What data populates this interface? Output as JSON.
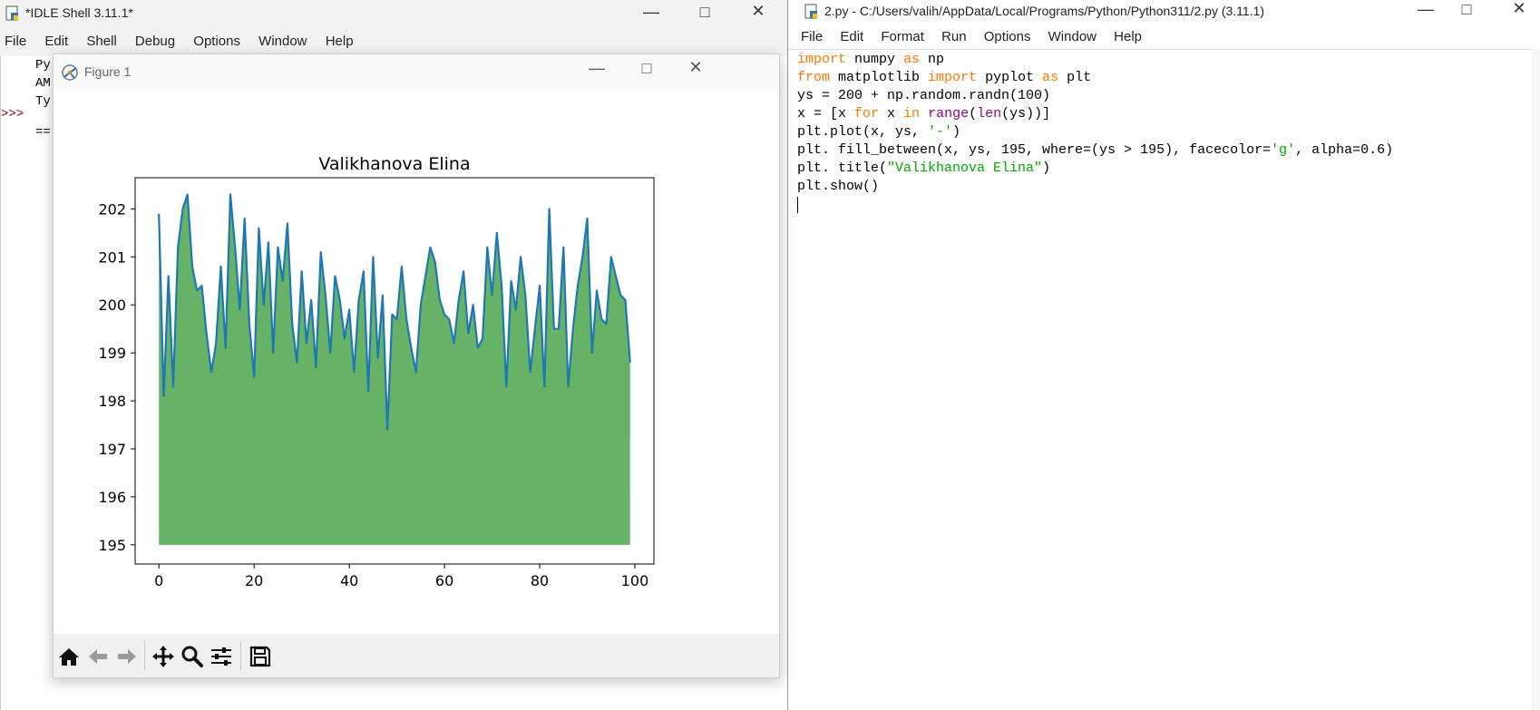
{
  "shell": {
    "title": "*IDLE Shell 3.11.1*",
    "menu": [
      "File",
      "Edit",
      "Shell",
      "Debug",
      "Options",
      "Window",
      "Help"
    ],
    "lines": [
      "Py",
      "AM",
      "Ty"
    ],
    "prompt": ">>>",
    "restart_marker": "=="
  },
  "editor": {
    "title": "2.py - C:/Users/valih/AppData/Local/Programs/Python/Python311/2.py (3.11.1)",
    "menu": [
      "File",
      "Edit",
      "Format",
      "Run",
      "Options",
      "Window",
      "Help"
    ],
    "code": [
      [
        {
          "t": "import",
          "c": "kw"
        },
        {
          "t": " numpy "
        },
        {
          "t": "as",
          "c": "kw"
        },
        {
          "t": " np"
        }
      ],
      [
        {
          "t": "from",
          "c": "kw"
        },
        {
          "t": " matplotlib "
        },
        {
          "t": "import",
          "c": "kw"
        },
        {
          "t": " pyplot "
        },
        {
          "t": "as",
          "c": "kw"
        },
        {
          "t": " plt"
        }
      ],
      [
        {
          "t": "ys = 200 + np.random.randn(100)"
        }
      ],
      [
        {
          "t": "x = [x "
        },
        {
          "t": "for",
          "c": "kw"
        },
        {
          "t": " x "
        },
        {
          "t": "in",
          "c": "kw"
        },
        {
          "t": " "
        },
        {
          "t": "range",
          "c": "bi"
        },
        {
          "t": "("
        },
        {
          "t": "len",
          "c": "bi"
        },
        {
          "t": "(ys))]"
        }
      ],
      [
        {
          "t": "plt.plot(x, ys, "
        },
        {
          "t": "'-'",
          "c": "str"
        },
        {
          "t": ")"
        }
      ],
      [
        {
          "t": "plt. fill_between(x, ys, 195, where=(ys > 195), facecolor="
        },
        {
          "t": "'g'",
          "c": "str"
        },
        {
          "t": ", alpha=0.6)"
        }
      ],
      [
        {
          "t": "plt. title("
        },
        {
          "t": "\"Valikhanova Elina\"",
          "c": "str"
        },
        {
          "t": ")"
        }
      ],
      [
        {
          "t": "plt.show()"
        }
      ]
    ],
    "colors": {
      "keyword": "#ff7700",
      "builtin": "#900090",
      "string": "#00aa00"
    }
  },
  "figure": {
    "title": "Figure 1",
    "toolbar": [
      "home-icon",
      "back-arrow-icon",
      "forward-arrow-icon",
      "pan-icon",
      "zoom-icon",
      "configure-subplots-icon",
      "save-icon"
    ]
  },
  "chart_data": {
    "type": "line",
    "title": "Valikhanova Elina",
    "xlabel": "",
    "ylabel": "",
    "xlim": [
      -5,
      104
    ],
    "ylim": [
      194.6,
      202.65
    ],
    "xticks": [
      0,
      20,
      40,
      60,
      80,
      100
    ],
    "yticks": [
      195,
      196,
      197,
      198,
      199,
      200,
      201,
      202
    ],
    "fill_baseline": 195,
    "fill_color": "#66b266",
    "line_color": "#1f77b4",
    "grid": false,
    "x": [
      0,
      1,
      2,
      3,
      4,
      5,
      6,
      7,
      8,
      9,
      10,
      11,
      12,
      13,
      14,
      15,
      16,
      17,
      18,
      19,
      20,
      21,
      22,
      23,
      24,
      25,
      26,
      27,
      28,
      29,
      30,
      31,
      32,
      33,
      34,
      35,
      36,
      37,
      38,
      39,
      40,
      41,
      42,
      43,
      44,
      45,
      46,
      47,
      48,
      49,
      50,
      51,
      52,
      53,
      54,
      55,
      56,
      57,
      58,
      59,
      60,
      61,
      62,
      63,
      64,
      65,
      66,
      67,
      68,
      69,
      70,
      71,
      72,
      73,
      74,
      75,
      76,
      77,
      78,
      79,
      80,
      81,
      82,
      83,
      84,
      85,
      86,
      87,
      88,
      89,
      90,
      91,
      92,
      93,
      94,
      95,
      96,
      97,
      98,
      99
    ],
    "y": [
      201.9,
      198.1,
      200.6,
      198.3,
      201.2,
      202.0,
      202.3,
      200.8,
      200.3,
      200.4,
      199.4,
      198.6,
      199.2,
      200.8,
      199.1,
      202.3,
      201.2,
      199.9,
      201.8,
      199.6,
      198.5,
      201.6,
      200.0,
      201.3,
      199.0,
      201.2,
      200.5,
      201.7,
      199.6,
      198.8,
      200.7,
      199.2,
      200.1,
      198.7,
      201.1,
      200.2,
      199.0,
      200.6,
      200.1,
      199.3,
      199.9,
      198.6,
      200.1,
      200.7,
      198.2,
      201.0,
      198.9,
      200.2,
      197.4,
      199.8,
      199.7,
      200.8,
      199.7,
      199.1,
      198.6,
      200.0,
      200.6,
      201.2,
      200.9,
      200.1,
      199.8,
      199.7,
      199.2,
      200.1,
      200.7,
      199.4,
      200.0,
      199.1,
      199.3,
      201.2,
      200.2,
      201.5,
      200.4,
      198.3,
      200.5,
      199.9,
      201.0,
      200.2,
      198.6,
      199.5,
      200.4,
      198.3,
      202.0,
      199.5,
      199.5,
      201.2,
      198.3,
      199.5,
      200.4,
      201.0,
      201.8,
      199.0,
      200.3,
      199.7,
      199.6,
      201.0,
      200.6,
      200.2,
      200.1,
      198.8
    ]
  }
}
